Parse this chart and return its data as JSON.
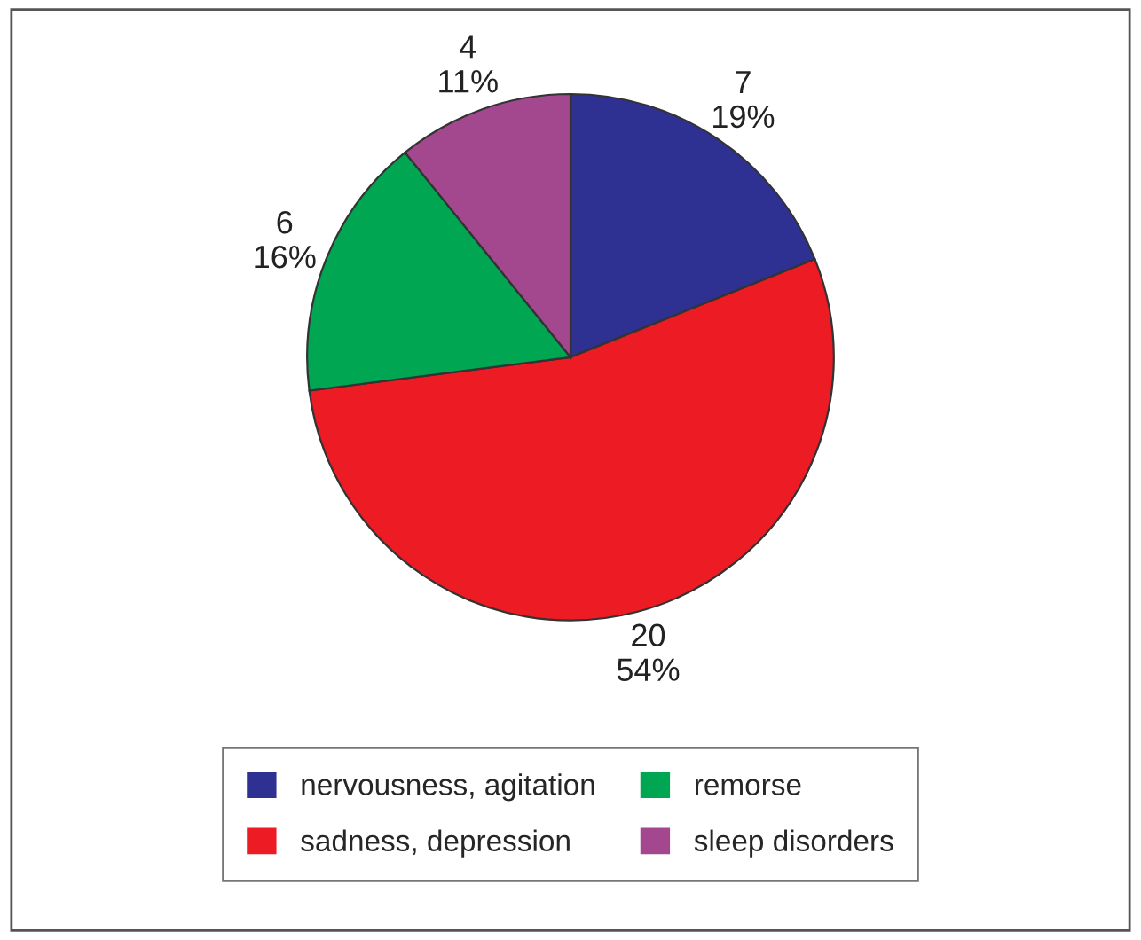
{
  "chart_data": {
    "type": "pie",
    "categories": [
      "nervousness, agitation",
      "sadness, depression",
      "remorse",
      "sleep disorders"
    ],
    "values": [
      7,
      20,
      6,
      4
    ],
    "value_labels": [
      "7\n19%",
      "20\n54%",
      "6\n16%",
      "4\n11%"
    ],
    "colors": [
      "#2e3192",
      "#ed1c24",
      "#00a651",
      "#a3478f"
    ],
    "legend": "bottom"
  }
}
